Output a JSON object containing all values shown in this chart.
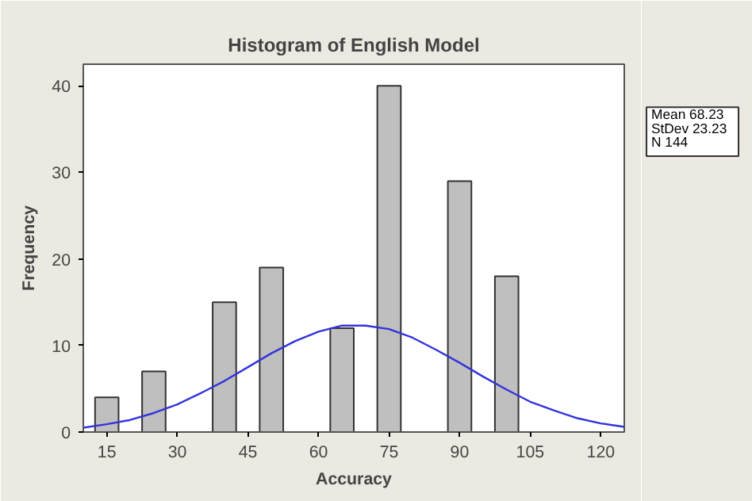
{
  "chart_data": {
    "type": "histogram",
    "title": "Histogram of English Model",
    "xlabel": "Accuracy",
    "ylabel": "Frequency",
    "bins": [
      12.5,
      17.5,
      22.5,
      27.5,
      32.5,
      37.5,
      42.5,
      47.5,
      52.5,
      57.5,
      62.5,
      67.5,
      72.5,
      77.5,
      82.5,
      87.5,
      92.5,
      97.5,
      102.5
    ],
    "values": [
      4,
      0,
      7,
      0,
      0,
      15,
      0,
      19,
      0,
      0,
      12,
      0,
      40,
      0,
      0,
      29,
      0,
      18
    ],
    "color": "#bfbfbf",
    "series": [
      {
        "type": "line",
        "color": "#3333dd",
        "x": [
          10,
          15,
          20,
          25,
          30,
          35,
          40,
          45,
          50,
          55,
          60,
          65,
          70,
          75,
          80,
          85,
          90,
          95,
          100,
          105,
          110,
          115,
          120,
          125
        ],
        "values": [
          0.5,
          0.9,
          1.4,
          2.2,
          3.2,
          4.5,
          5.9,
          7.5,
          9.1,
          10.5,
          11.6,
          12.3,
          12.3,
          11.9,
          10.9,
          9.5,
          8.0,
          6.4,
          4.9,
          3.5,
          2.5,
          1.6,
          1.0,
          0.6
        ]
      }
    ],
    "xlim": [
      10,
      125
    ],
    "ylim": [
      0,
      42.5
    ],
    "xticks": [
      15,
      30,
      45,
      60,
      75,
      90,
      105,
      120
    ],
    "yticks": [
      0,
      10,
      20,
      30,
      40
    ],
    "grid": false,
    "annotations": [
      "Mean 68.23",
      "StDev 23.23",
      "N 144"
    ]
  }
}
